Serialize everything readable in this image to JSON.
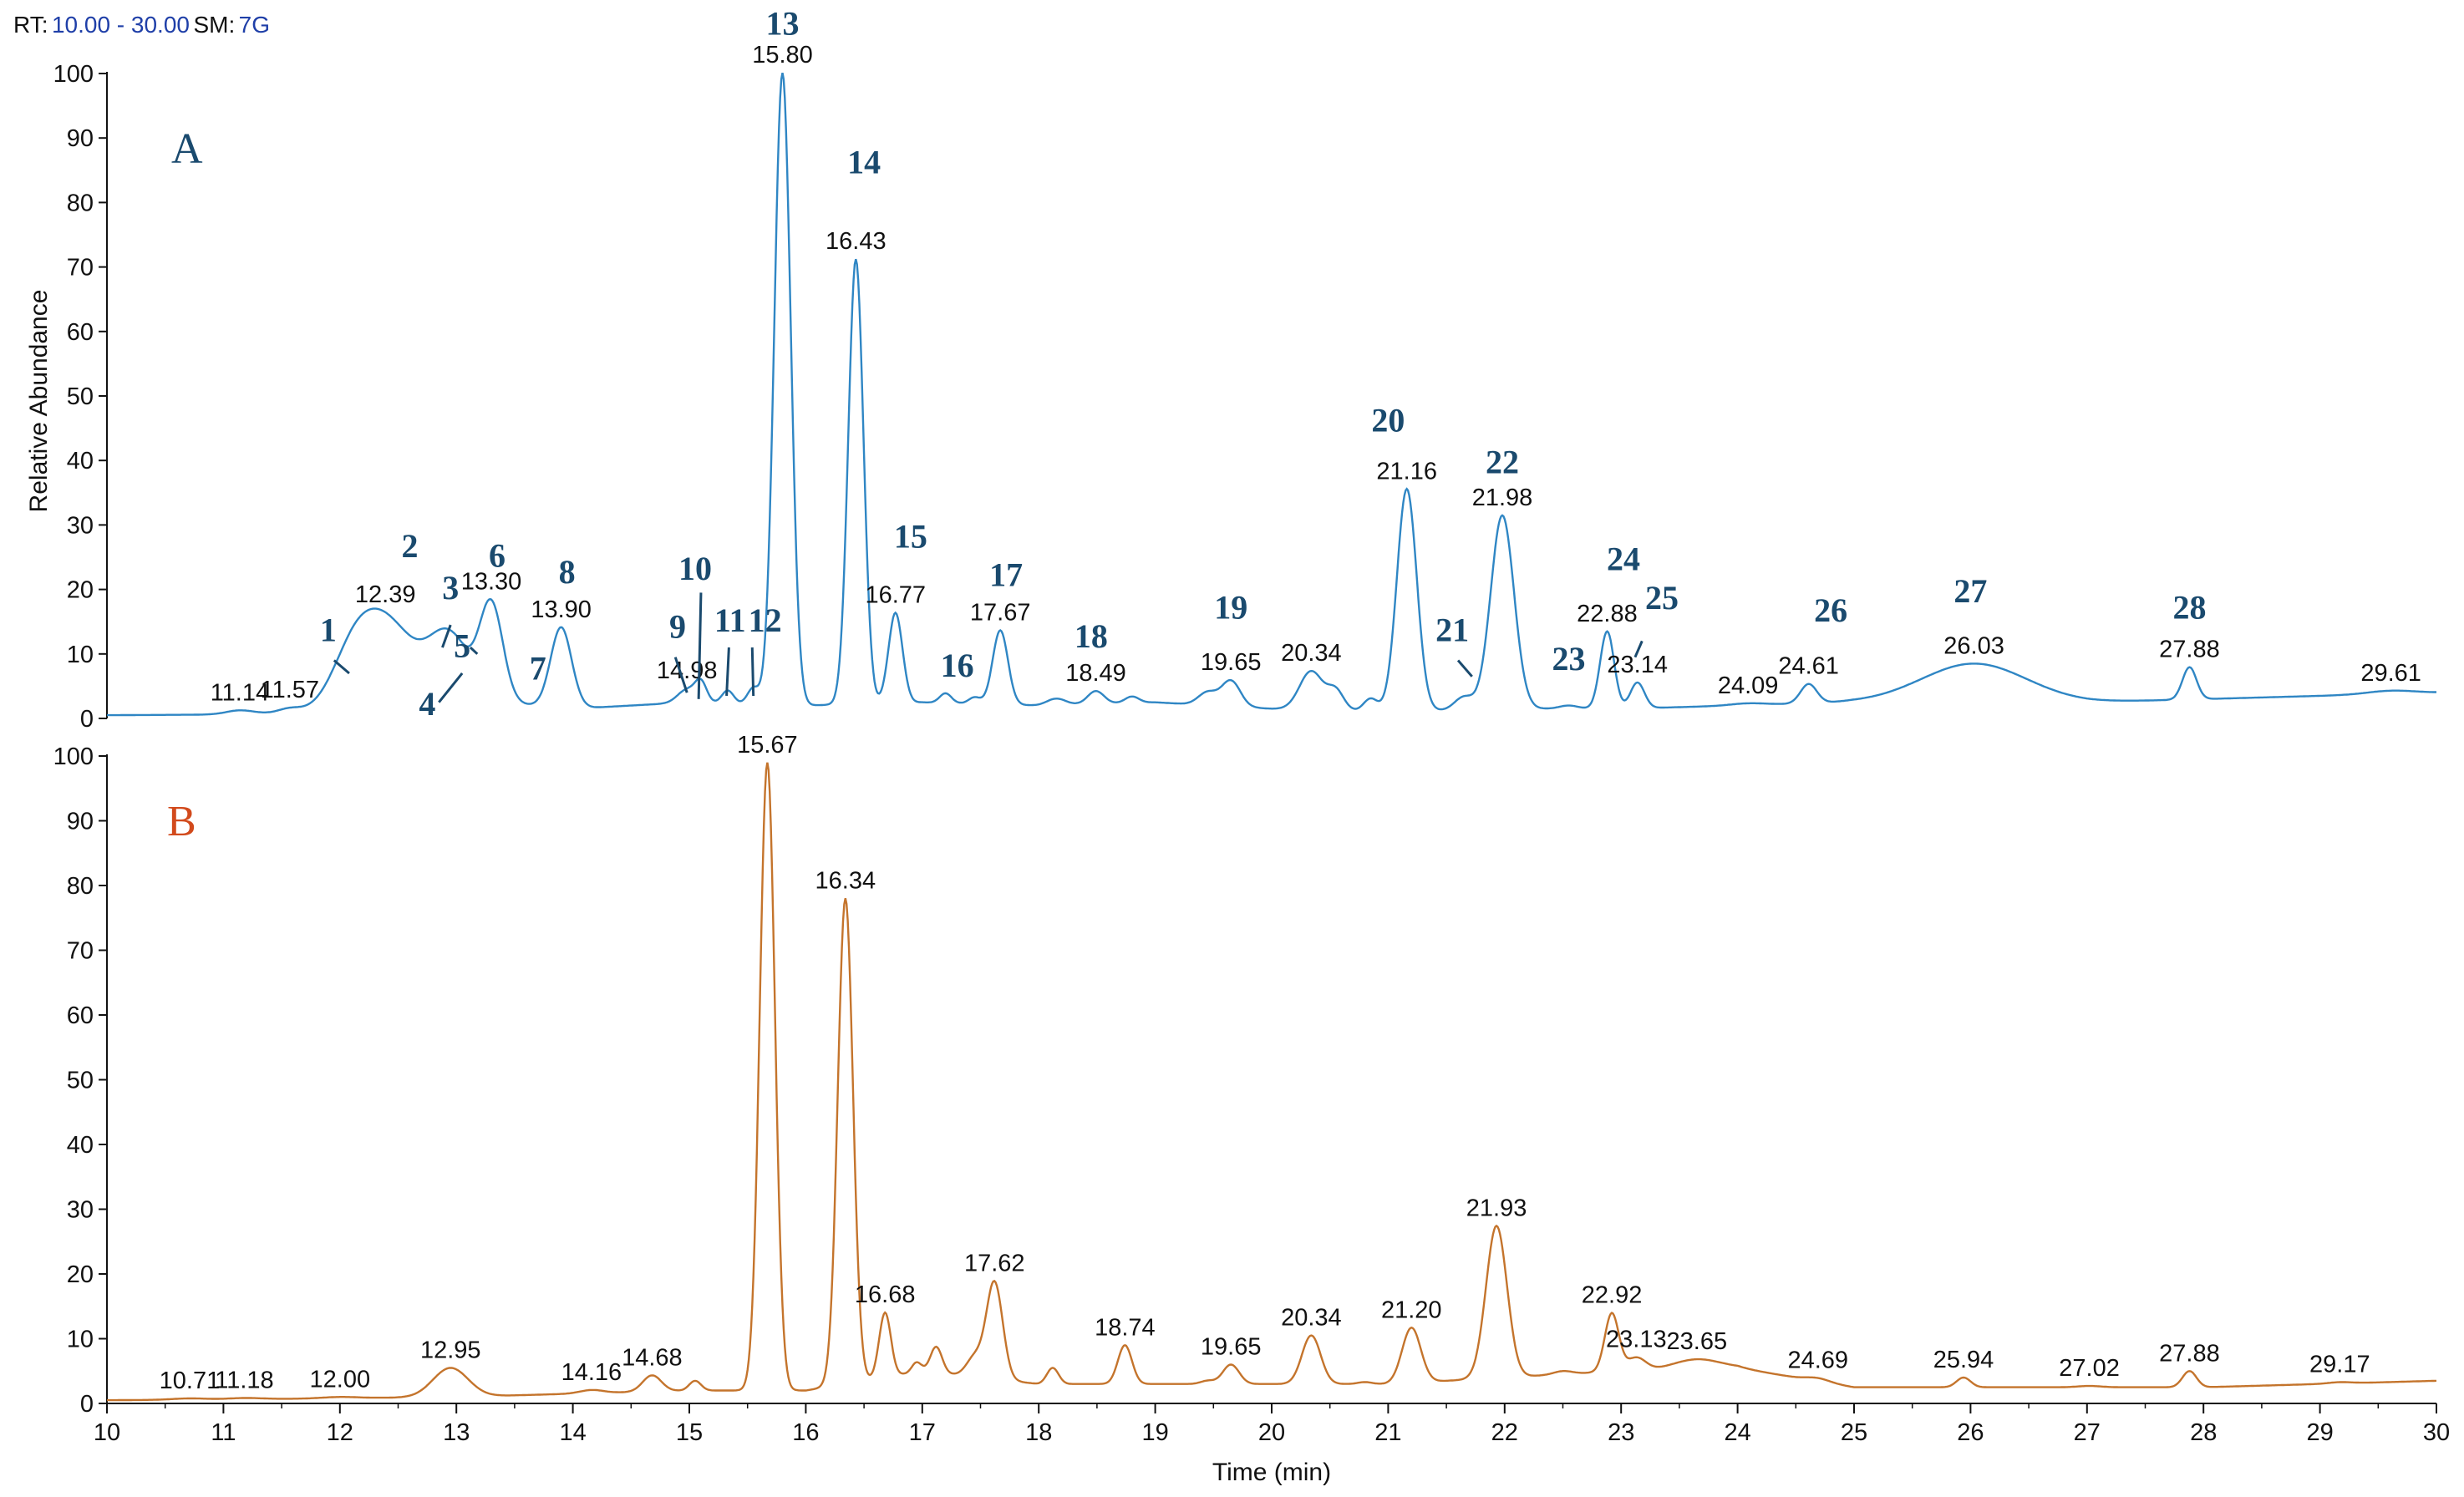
{
  "header": {
    "rt_label": "RT:",
    "rt_range": "10.00 - 30.00",
    "sm_label": "SM:",
    "sm_value": "7G"
  },
  "colors": {
    "trace_A": "#2f86c4",
    "trace_B": "#c4742c",
    "peak_id": "#1a4a6e",
    "tag_A": "#1a4a6e",
    "tag_B": "#d24a1c",
    "header_value": "#1f3fa8",
    "axis": "#111111"
  },
  "chart_data": {
    "type": "line",
    "xlabel": "Time (min)",
    "ylabel": "Relative  Abundance",
    "xlim": [
      10,
      30
    ],
    "ylim": [
      0,
      100
    ],
    "x_ticks": [
      10,
      11,
      12,
      13,
      14,
      15,
      16,
      17,
      18,
      19,
      20,
      21,
      22,
      23,
      24,
      25,
      26,
      27,
      28,
      29,
      30
    ],
    "y_ticks": [
      0,
      10,
      20,
      30,
      40,
      50,
      60,
      70,
      80,
      90,
      100
    ],
    "panels": [
      {
        "tag": "A",
        "baseline": [
          [
            10,
            0.5
          ],
          [
            11,
            0.6
          ],
          [
            12,
            1
          ],
          [
            13,
            3
          ],
          [
            14,
            1.5
          ],
          [
            15,
            2.5
          ],
          [
            16,
            2
          ],
          [
            17,
            2.5
          ],
          [
            18,
            2
          ],
          [
            19,
            2.5
          ],
          [
            20,
            1.5
          ],
          [
            21,
            1
          ],
          [
            22,
            1.5
          ],
          [
            23,
            1.5
          ],
          [
            24,
            2
          ],
          [
            25,
            2.5
          ],
          [
            26,
            2.5
          ],
          [
            27,
            2.5
          ],
          [
            28,
            3
          ],
          [
            29,
            3.5
          ],
          [
            30,
            4
          ]
        ],
        "peaks": [
          [
            11.14,
            0.6,
            0.12
          ],
          [
            11.57,
            0.7,
            0.1
          ],
          [
            12.1,
            6,
            0.18
          ],
          [
            12.39,
            13,
            0.25
          ],
          [
            12.85,
            5,
            0.15
          ],
          [
            13.0,
            6,
            0.15
          ],
          [
            13.3,
            15,
            0.1
          ],
          [
            13.9,
            12.5,
            0.09
          ],
          [
            14.98,
            2,
            0.08
          ],
          [
            15.1,
            3,
            0.05
          ],
          [
            15.33,
            2,
            0.05
          ],
          [
            15.55,
            2.5,
            0.05
          ],
          [
            15.8,
            98,
            0.07
          ],
          [
            16.43,
            69,
            0.065
          ],
          [
            16.77,
            14,
            0.06
          ],
          [
            17.2,
            1.5,
            0.05
          ],
          [
            17.45,
            1,
            0.05
          ],
          [
            17.67,
            11.5,
            0.065
          ],
          [
            18.15,
            1,
            0.08
          ],
          [
            18.49,
            2,
            0.07
          ],
          [
            18.8,
            1,
            0.06
          ],
          [
            19.45,
            2,
            0.08
          ],
          [
            19.65,
            4,
            0.08
          ],
          [
            20.34,
            6,
            0.1
          ],
          [
            20.55,
            3,
            0.07
          ],
          [
            20.85,
            2,
            0.06
          ],
          [
            21.16,
            34.5,
            0.085
          ],
          [
            21.65,
            2,
            0.08
          ],
          [
            21.98,
            30,
            0.1
          ],
          [
            22.55,
            0.5,
            0.08
          ],
          [
            22.88,
            12,
            0.06
          ],
          [
            23.14,
            4,
            0.06
          ],
          [
            24.09,
            0.3,
            0.15
          ],
          [
            24.61,
            3,
            0.07
          ],
          [
            26.03,
            6,
            0.45
          ],
          [
            27.88,
            5,
            0.06
          ],
          [
            29.61,
            0.5,
            0.2
          ]
        ],
        "labels": [
          {
            "x": 11.14,
            "text": "11.14"
          },
          {
            "x": 11.57,
            "text": "11.57"
          },
          {
            "x": 12.39,
            "text": "12.39"
          },
          {
            "x": 13.3,
            "text": "13.30"
          },
          {
            "x": 13.9,
            "text": "13.90"
          },
          {
            "x": 14.98,
            "text": "14.98"
          },
          {
            "x": 15.8,
            "text": "15.80"
          },
          {
            "x": 16.43,
            "text": "16.43"
          },
          {
            "x": 16.77,
            "text": "16.77"
          },
          {
            "x": 17.67,
            "text": "17.67"
          },
          {
            "x": 18.49,
            "text": "18.49"
          },
          {
            "x": 19.65,
            "text": "19.65"
          },
          {
            "x": 20.34,
            "text": "20.34"
          },
          {
            "x": 21.16,
            "text": "21.16"
          },
          {
            "x": 21.98,
            "text": "21.98"
          },
          {
            "x": 22.88,
            "text": "22.88"
          },
          {
            "x": 23.14,
            "text": "23.14"
          },
          {
            "x": 24.09,
            "text": "24.09"
          },
          {
            "x": 24.61,
            "text": "24.61"
          },
          {
            "x": 26.03,
            "text": "26.03"
          },
          {
            "x": 27.88,
            "text": "27.88"
          },
          {
            "x": 29.61,
            "text": "29.61"
          }
        ],
        "peak_ids": [
          {
            "id": "1",
            "x": 11.9,
            "y": 12
          },
          {
            "id": "2",
            "x": 12.6,
            "y": 25
          },
          {
            "id": "3",
            "x": 12.95,
            "y": 18.5
          },
          {
            "id": "4",
            "x": 12.75,
            "y": 0.5
          },
          {
            "id": "5",
            "x": 13.05,
            "y": 9.5
          },
          {
            "id": "6",
            "x": 13.35,
            "y": 23.5
          },
          {
            "id": "7",
            "x": 13.7,
            "y": 6
          },
          {
            "id": "8",
            "x": 13.95,
            "y": 21
          },
          {
            "id": "9",
            "x": 14.9,
            "y": 12.5
          },
          {
            "id": "10",
            "x": 15.05,
            "y": 21.5
          },
          {
            "id": "11",
            "x": 15.35,
            "y": 13.5
          },
          {
            "id": "12",
            "x": 15.65,
            "y": 13.5
          },
          {
            "id": "13",
            "x": 15.8,
            "y": 106
          },
          {
            "id": "14",
            "x": 16.5,
            "y": 84.5
          },
          {
            "id": "15",
            "x": 16.9,
            "y": 26.5
          },
          {
            "id": "16",
            "x": 17.3,
            "y": 6.5
          },
          {
            "id": "17",
            "x": 17.72,
            "y": 20.5
          },
          {
            "id": "18",
            "x": 18.45,
            "y": 11
          },
          {
            "id": "19",
            "x": 19.65,
            "y": 15.5
          },
          {
            "id": "20",
            "x": 21.0,
            "y": 44.5
          },
          {
            "id": "21",
            "x": 21.55,
            "y": 12
          },
          {
            "id": "22",
            "x": 21.98,
            "y": 38
          },
          {
            "id": "23",
            "x": 22.55,
            "y": 7.5
          },
          {
            "id": "24",
            "x": 23.02,
            "y": 23
          },
          {
            "id": "25",
            "x": 23.35,
            "y": 17
          },
          {
            "id": "26",
            "x": 24.8,
            "y": 15
          },
          {
            "id": "27",
            "x": 26.0,
            "y": 18
          },
          {
            "id": "28",
            "x": 27.88,
            "y": 15.5
          }
        ],
        "leaders": [
          [
            12.08,
            7,
            11.95,
            9
          ],
          [
            12.88,
            11,
            12.95,
            14.5
          ],
          [
            12.85,
            2.5,
            13.05,
            7
          ],
          [
            13.18,
            10,
            13.12,
            11
          ],
          [
            14.98,
            4,
            14.88,
            9.5
          ],
          [
            15.08,
            3,
            15.1,
            19.5
          ],
          [
            15.32,
            3.5,
            15.34,
            11
          ],
          [
            15.55,
            3.5,
            15.54,
            11
          ],
          [
            21.72,
            6.5,
            21.6,
            9
          ],
          [
            23.12,
            9.5,
            23.18,
            12
          ]
        ]
      },
      {
        "tag": "B",
        "baseline": [
          [
            10,
            0.5
          ],
          [
            11,
            0.6
          ],
          [
            12,
            0.8
          ],
          [
            13,
            1
          ],
          [
            14,
            1.5
          ],
          [
            15,
            2
          ],
          [
            16,
            2
          ],
          [
            17,
            5
          ],
          [
            18,
            3
          ],
          [
            19,
            3
          ],
          [
            20,
            3
          ],
          [
            21,
            3
          ],
          [
            22,
            4
          ],
          [
            23,
            5
          ],
          [
            24,
            5.5
          ],
          [
            25,
            2.5
          ],
          [
            26,
            2.5
          ],
          [
            27,
            2.5
          ],
          [
            28,
            2.5
          ],
          [
            29,
            3
          ],
          [
            30,
            3.5
          ]
        ],
        "peaks": [
          [
            10.71,
            0.2,
            0.15
          ],
          [
            11.18,
            0.2,
            0.15
          ],
          [
            12.0,
            0.2,
            0.15
          ],
          [
            12.95,
            4.5,
            0.15
          ],
          [
            14.16,
            0.5,
            0.1
          ],
          [
            14.68,
            2.5,
            0.08
          ],
          [
            15.05,
            1.5,
            0.05
          ],
          [
            15.67,
            97,
            0.065
          ],
          [
            16.34,
            75,
            0.065
          ],
          [
            16.68,
            10,
            0.05
          ],
          [
            16.95,
            1.5,
            0.04
          ],
          [
            17.12,
            4,
            0.05
          ],
          [
            17.45,
            3,
            0.07
          ],
          [
            17.62,
            15,
            0.07
          ],
          [
            18.12,
            2.5,
            0.05
          ],
          [
            18.74,
            6,
            0.06
          ],
          [
            19.45,
            0.5,
            0.06
          ],
          [
            19.65,
            3,
            0.07
          ],
          [
            20.34,
            7.5,
            0.08
          ],
          [
            20.8,
            0.3,
            0.06
          ],
          [
            21.2,
            8.5,
            0.08
          ],
          [
            21.93,
            23.5,
            0.09
          ],
          [
            22.5,
            0.5,
            0.08
          ],
          [
            22.92,
            9,
            0.06
          ],
          [
            23.13,
            2,
            0.08
          ],
          [
            23.65,
            1.5,
            0.2
          ],
          [
            24.69,
            0.5,
            0.1
          ],
          [
            25.94,
            1.5,
            0.06
          ],
          [
            27.02,
            0.2,
            0.1
          ],
          [
            27.88,
            2.5,
            0.06
          ],
          [
            29.17,
            0.2,
            0.1
          ]
        ],
        "labels": [
          {
            "x": 10.71,
            "text": "10.71"
          },
          {
            "x": 11.18,
            "text": "11.18"
          },
          {
            "x": 12.0,
            "text": "12.00"
          },
          {
            "x": 12.95,
            "text": "12.95"
          },
          {
            "x": 14.16,
            "text": "14.16"
          },
          {
            "x": 14.68,
            "text": "14.68"
          },
          {
            "x": 15.67,
            "text": "15.67"
          },
          {
            "x": 16.34,
            "text": "16.34"
          },
          {
            "x": 16.68,
            "text": "16.68"
          },
          {
            "x": 17.62,
            "text": "17.62"
          },
          {
            "x": 18.74,
            "text": "18.74"
          },
          {
            "x": 19.65,
            "text": "19.65"
          },
          {
            "x": 20.34,
            "text": "20.34"
          },
          {
            "x": 21.2,
            "text": "21.20"
          },
          {
            "x": 21.93,
            "text": "21.93"
          },
          {
            "x": 22.92,
            "text": "22.92"
          },
          {
            "x": 23.13,
            "text": "23.13"
          },
          {
            "x": 23.65,
            "text": "23.65"
          },
          {
            "x": 24.69,
            "text": "24.69"
          },
          {
            "x": 25.94,
            "text": "25.94"
          },
          {
            "x": 27.02,
            "text": "27.02"
          },
          {
            "x": 27.88,
            "text": "27.88"
          },
          {
            "x": 29.17,
            "text": "29.17"
          }
        ],
        "peak_ids": [],
        "leaders": []
      }
    ]
  }
}
